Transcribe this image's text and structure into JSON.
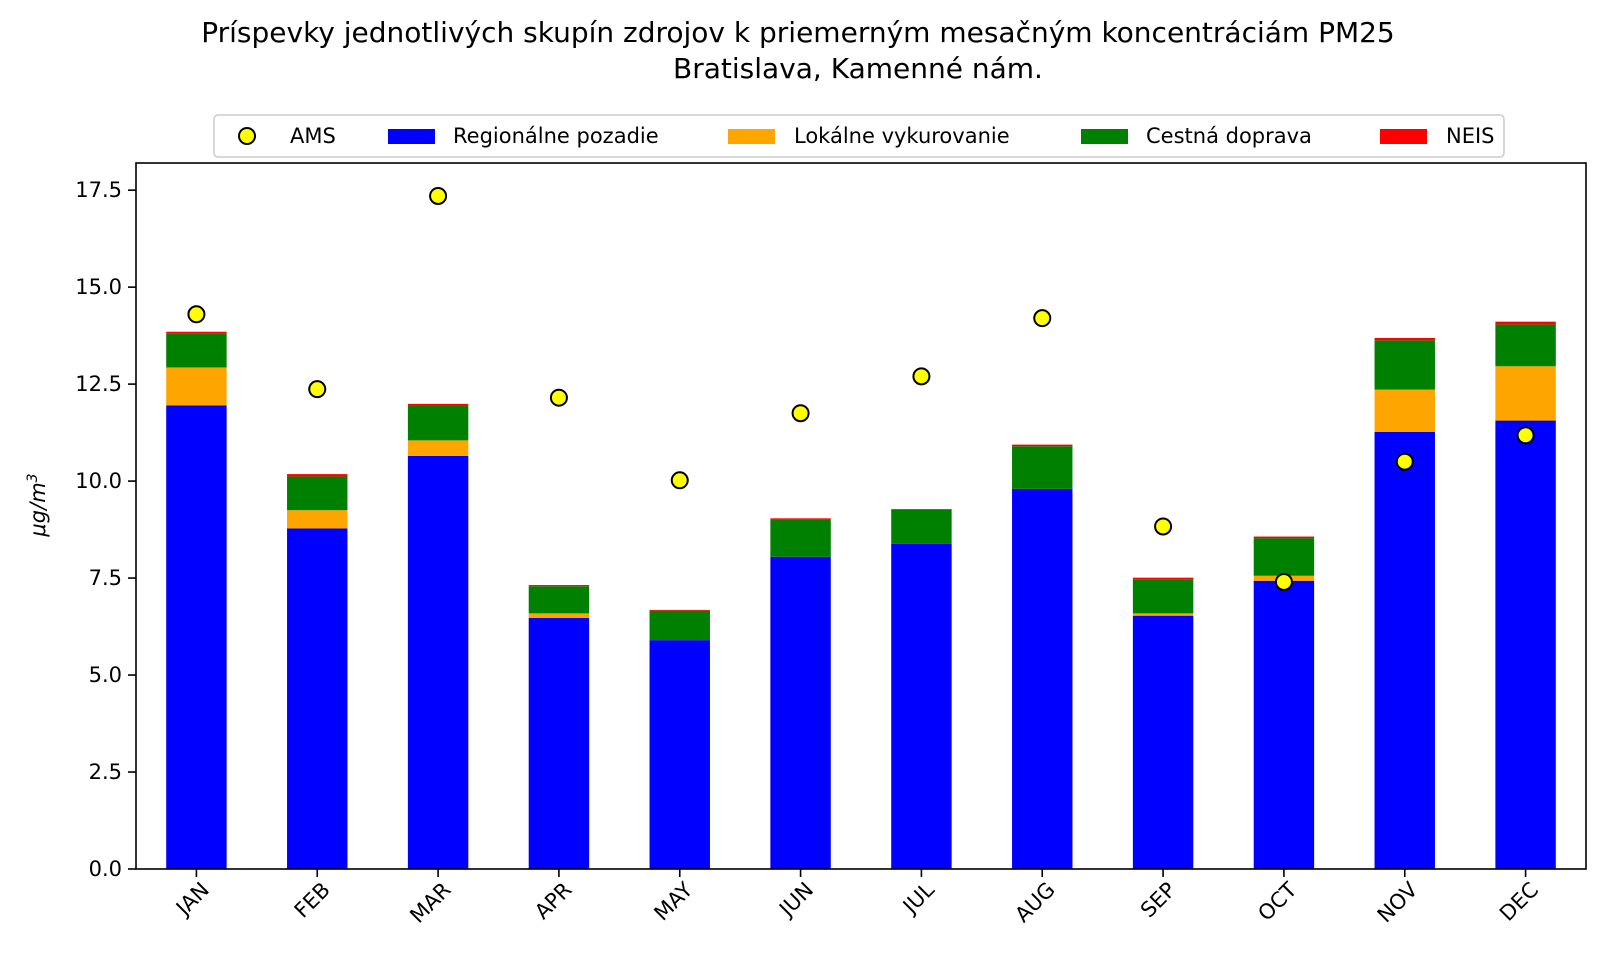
{
  "chart_data": {
    "type": "bar",
    "stacked": true,
    "title": "Príspevky jednotlivých skupín zdrojov k priemerným mesačným koncentráciám PM25",
    "subtitle": "Bratislava, Kamenné nám.",
    "xlabel": "",
    "ylabel": "μg/m",
    "ylabel_superscript": "3",
    "ylim": [
      0,
      18.2
    ],
    "yticks": [
      0.0,
      2.5,
      5.0,
      7.5,
      10.0,
      12.5,
      15.0,
      17.5
    ],
    "ytick_labels": [
      "0.0",
      "2.5",
      "5.0",
      "7.5",
      "10.0",
      "12.5",
      "15.0",
      "17.5"
    ],
    "categories": [
      "JAN",
      "FEB",
      "MAR",
      "APR",
      "MAY",
      "JUN",
      "JUL",
      "AUG",
      "SEP",
      "OCT",
      "NOV",
      "DEC"
    ],
    "series": [
      {
        "name": "Regionálne pozadie",
        "color": "#0000ff",
        "values": [
          11.95,
          8.78,
          10.65,
          6.47,
          5.9,
          8.05,
          8.38,
          9.8,
          6.53,
          7.43,
          11.27,
          11.56
        ]
      },
      {
        "name": "Lokálne vykurovanie",
        "color": "#ffa500",
        "values": [
          0.98,
          0.47,
          0.4,
          0.12,
          0.0,
          0.0,
          0.0,
          0.0,
          0.06,
          0.13,
          1.09,
          1.4
        ]
      },
      {
        "name": "Cestná doprava",
        "color": "#008000",
        "values": [
          0.87,
          0.87,
          0.9,
          0.7,
          0.76,
          0.97,
          0.88,
          1.1,
          0.88,
          0.97,
          1.27,
          1.08
        ]
      },
      {
        "name": "NEIS",
        "color": "#ff0000",
        "values": [
          0.05,
          0.06,
          0.04,
          0.03,
          0.02,
          0.02,
          0.02,
          0.04,
          0.04,
          0.04,
          0.06,
          0.07
        ]
      }
    ],
    "markers": {
      "name": "AMS",
      "color": "#ffff00",
      "values": [
        14.3,
        12.37,
        17.35,
        12.15,
        10.02,
        11.75,
        12.7,
        14.2,
        8.83,
        7.4,
        10.5,
        11.18
      ]
    },
    "legend": {
      "position": "top",
      "entries": [
        "AMS",
        "Regionálne pozadie",
        "Lokálne vykurovanie",
        "Cestná doprava",
        "NEIS"
      ]
    }
  }
}
